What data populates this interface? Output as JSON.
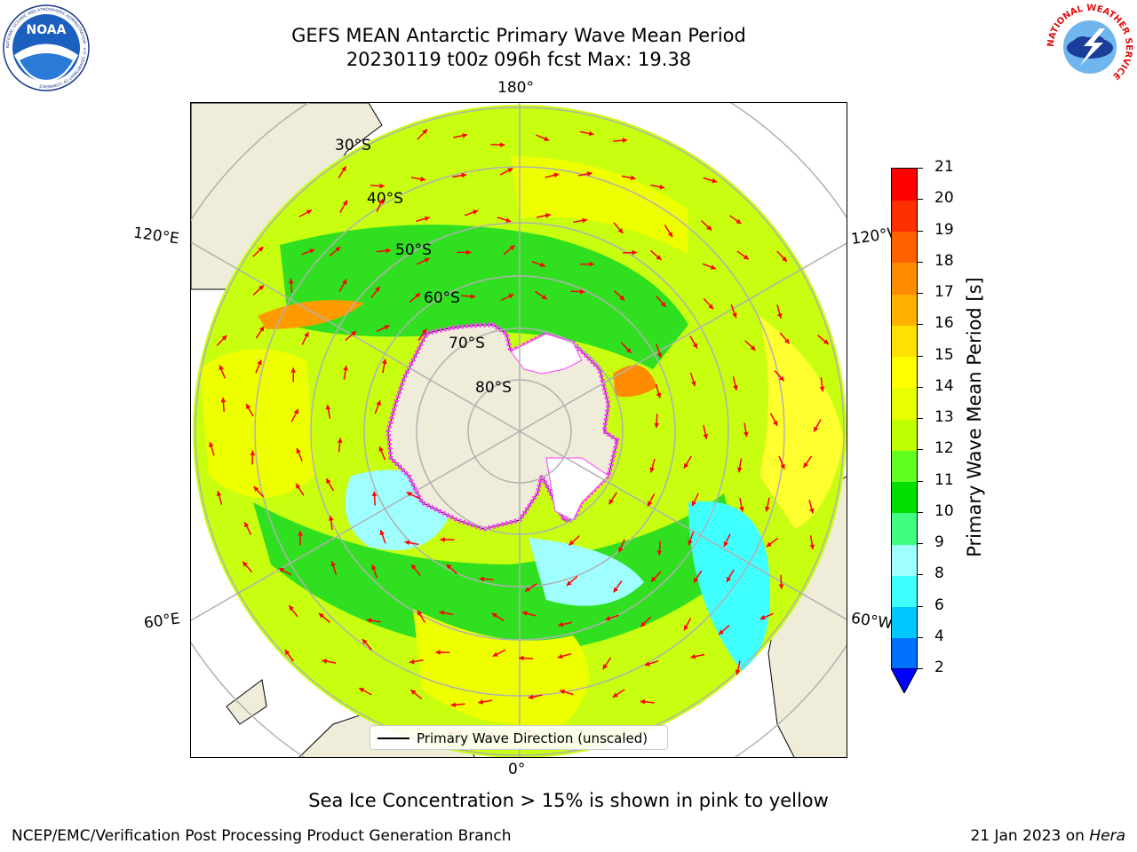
{
  "header": {
    "title_line1": "GEFS MEAN Antarctic Primary Wave Mean Period",
    "title_line2": "20230119 t00z 096h fcst   Max: 19.38"
  },
  "logos": {
    "noaa_text": "NOAA",
    "noaa_ring_text": "NATIONAL OCEANIC AND ATMOSPHERIC ADMINISTRATION · U.S. DEPARTMENT OF COMMERCE",
    "nws_ring_text": "NATIONAL WEATHER SERVICE"
  },
  "map": {
    "projection": "south-polar-stereographic",
    "longitude_labels": {
      "top": "180°",
      "bottom": "0°",
      "upper_left": "120°E",
      "upper_right": "120°W",
      "lower_left": "60°E",
      "lower_right": "60°W"
    },
    "latitude_labels": [
      "30°S",
      "40°S",
      "50°S",
      "60°S",
      "70°S",
      "80°S"
    ],
    "legend_entry": "Primary Wave Direction (unscaled)"
  },
  "colorbar": {
    "label": "Primary Wave Mean Period [s]",
    "ticks": [
      "2",
      "4",
      "6",
      "8",
      "9",
      "10",
      "11",
      "12",
      "13",
      "14",
      "15",
      "16",
      "17",
      "18",
      "19",
      "20",
      "21"
    ],
    "colors": [
      "#0070ff",
      "#00c8ff",
      "#40ffff",
      "#a0ffff",
      "#40ff80",
      "#00e000",
      "#60ff20",
      "#c0ff00",
      "#e8ff00",
      "#ffff00",
      "#ffe000",
      "#ffb000",
      "#ff8c00",
      "#ff6000",
      "#ff3000",
      "#ff0000"
    ],
    "extend_color": "#0000ff"
  },
  "notes": {
    "sea_ice": "Sea Ice Concentration > 15% is shown in pink to yellow",
    "footer_left": "NCEP/EMC/Verification Post Processing Product Generation Branch",
    "footer_date": "21 Jan 2023 on",
    "footer_machine": "Hera"
  },
  "colors": {
    "land": "#efedda",
    "arrow": "#ff0000",
    "graticule": "#b0b0b0",
    "sea_ice": "#ff40ff"
  }
}
